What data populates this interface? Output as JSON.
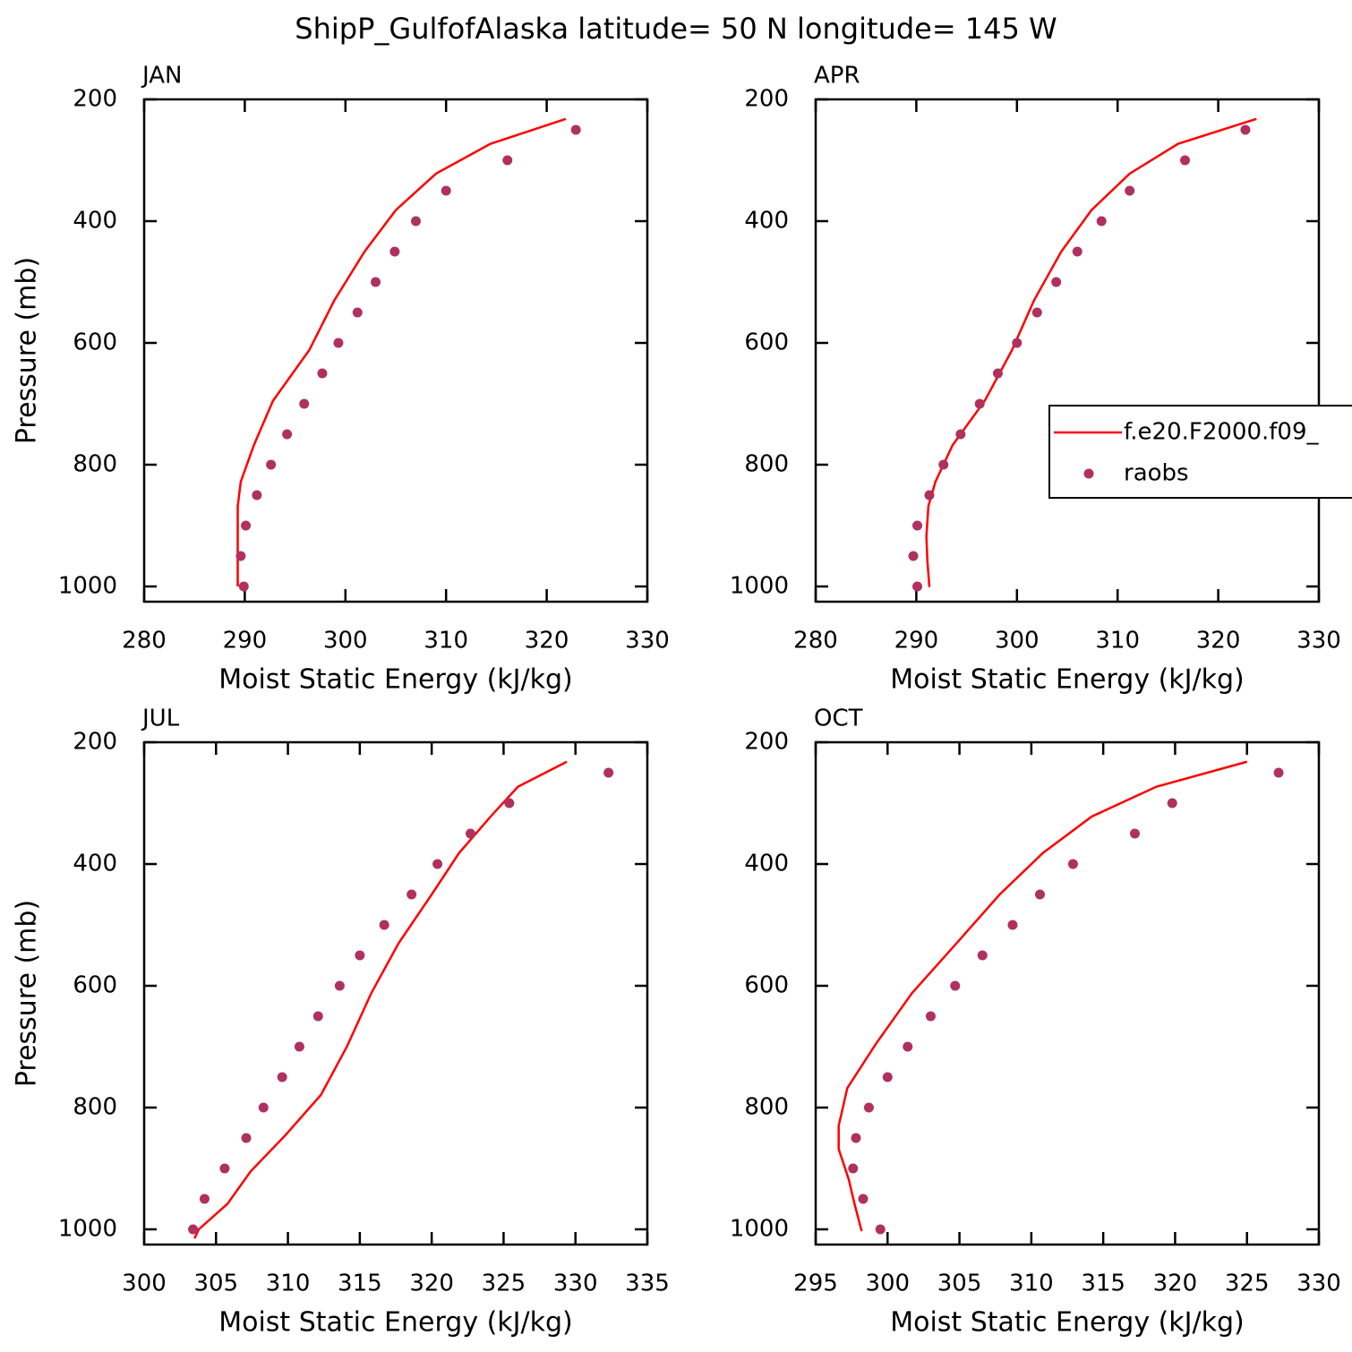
{
  "title": "ShipP_GulfofAlaska  latitude= 50 N longitude= 145 W",
  "chart_data": [
    {
      "type": "line",
      "title": "JAN",
      "xlabel": "Moist Static Energy (kJ/kg)",
      "ylabel": "Pressure (mb)",
      "xlim": [
        280,
        330
      ],
      "xticks": [
        280,
        290,
        300,
        310,
        320,
        330
      ],
      "ylim": [
        1025,
        200
      ],
      "yticks": [
        200,
        400,
        600,
        800,
        1000
      ],
      "series": [
        {
          "name": "f.e20.F2000.f09_",
          "color": "#ff0000",
          "mode": "lines",
          "x": [
            321.9,
            314.4,
            309.0,
            305.0,
            301.9,
            298.9,
            296.4,
            292.8,
            290.9,
            289.6,
            289.3,
            289.3,
            289.3
          ],
          "values": [
            232,
            273,
            322,
            382,
            450,
            530,
            612,
            695,
            768,
            828,
            868,
            918,
            1000
          ]
        },
        {
          "name": "raobs",
          "color": "#b03060",
          "mode": "markers",
          "x": [
            322.9,
            316.1,
            310.0,
            307.0,
            304.9,
            303.0,
            301.2,
            299.3,
            297.7,
            295.9,
            294.2,
            292.6,
            291.2,
            290.1,
            289.6,
            289.9
          ],
          "values": [
            250,
            300,
            350,
            400,
            450,
            500,
            550,
            600,
            650,
            700,
            750,
            800,
            850,
            900,
            950,
            1000
          ]
        }
      ]
    },
    {
      "type": "line",
      "title": "APR",
      "xlabel": "Moist Static Energy (kJ/kg)",
      "legend": "right",
      "xlim": [
        280,
        330
      ],
      "xticks": [
        280,
        290,
        300,
        310,
        320,
        330
      ],
      "ylim": [
        1025,
        200
      ],
      "yticks": [
        200,
        400,
        600,
        800,
        1000
      ],
      "series": [
        {
          "name": "f.e20.F2000.f09_",
          "color": "#ff0000",
          "mode": "lines",
          "x": [
            323.8,
            316.0,
            311.2,
            307.4,
            304.4,
            301.7,
            299.5,
            296.8,
            293.6,
            291.9,
            291.2,
            291.0,
            291.1,
            291.3
          ],
          "values": [
            232,
            273,
            322,
            382,
            450,
            530,
            612,
            695,
            768,
            828,
            868,
            918,
            958,
            1001
          ]
        },
        {
          "name": "raobs",
          "color": "#b03060",
          "mode": "markers",
          "x": [
            322.7,
            316.7,
            311.2,
            308.4,
            306.0,
            303.9,
            302.0,
            300.0,
            298.1,
            296.3,
            294.4,
            292.7,
            291.3,
            290.1,
            289.7,
            290.1
          ],
          "values": [
            250,
            300,
            350,
            400,
            450,
            500,
            550,
            600,
            650,
            700,
            750,
            800,
            850,
            900,
            950,
            1000
          ]
        }
      ]
    },
    {
      "type": "line",
      "title": "JUL",
      "xlabel": "Moist Static Energy (kJ/kg)",
      "ylabel": "Pressure (mb)",
      "xlim": [
        300,
        335
      ],
      "xticks": [
        300,
        305,
        310,
        315,
        320,
        325,
        330,
        335
      ],
      "ylim": [
        1025,
        200
      ],
      "yticks": [
        200,
        400,
        600,
        800,
        1000
      ],
      "series": [
        {
          "name": "f.e20.F2000.f09_",
          "color": "#ff0000",
          "mode": "lines",
          "x": [
            329.4,
            326.0,
            324.1,
            321.9,
            320.0,
            317.7,
            315.8,
            314.1,
            312.3,
            309.8,
            307.4,
            305.8,
            303.8,
            303.5
          ],
          "values": [
            232,
            273,
            322,
            382,
            450,
            530,
            612,
            700,
            779,
            846,
            905,
            958,
            1000,
            1015
          ]
        },
        {
          "name": "raobs",
          "color": "#b03060",
          "mode": "markers",
          "x": [
            332.3,
            325.4,
            322.7,
            320.4,
            318.6,
            316.7,
            315.0,
            313.6,
            312.1,
            310.8,
            309.6,
            308.3,
            307.1,
            305.6,
            304.2,
            303.4
          ],
          "values": [
            250,
            300,
            350,
            400,
            450,
            500,
            550,
            600,
            650,
            700,
            750,
            800,
            850,
            900,
            950,
            1000
          ]
        }
      ]
    },
    {
      "type": "line",
      "title": "OCT",
      "xlabel": "Moist Static Energy (kJ/kg)",
      "xlim": [
        295,
        330
      ],
      "xticks": [
        295,
        300,
        305,
        310,
        315,
        320,
        325,
        330
      ],
      "ylim": [
        1025,
        200
      ],
      "yticks": [
        200,
        400,
        600,
        800,
        1000
      ],
      "series": [
        {
          "name": "f.e20.F2000.f09_",
          "color": "#ff0000",
          "mode": "lines",
          "x": [
            325.0,
            318.7,
            314.2,
            310.8,
            307.8,
            304.8,
            301.7,
            299.2,
            297.2,
            296.6,
            296.6,
            297.3,
            297.7,
            298.2
          ],
          "values": [
            232,
            273,
            322,
            382,
            450,
            530,
            612,
            695,
            768,
            830,
            868,
            918,
            958,
            1003
          ]
        },
        {
          "name": "raobs",
          "color": "#b03060",
          "mode": "markers",
          "x": [
            327.2,
            319.8,
            317.2,
            312.9,
            310.6,
            308.7,
            306.6,
            304.7,
            303.0,
            301.4,
            300.0,
            298.7,
            297.8,
            297.6,
            298.3,
            299.5
          ],
          "values": [
            250,
            300,
            350,
            400,
            450,
            500,
            550,
            600,
            650,
            700,
            750,
            800,
            850,
            900,
            950,
            1000
          ]
        }
      ]
    }
  ]
}
